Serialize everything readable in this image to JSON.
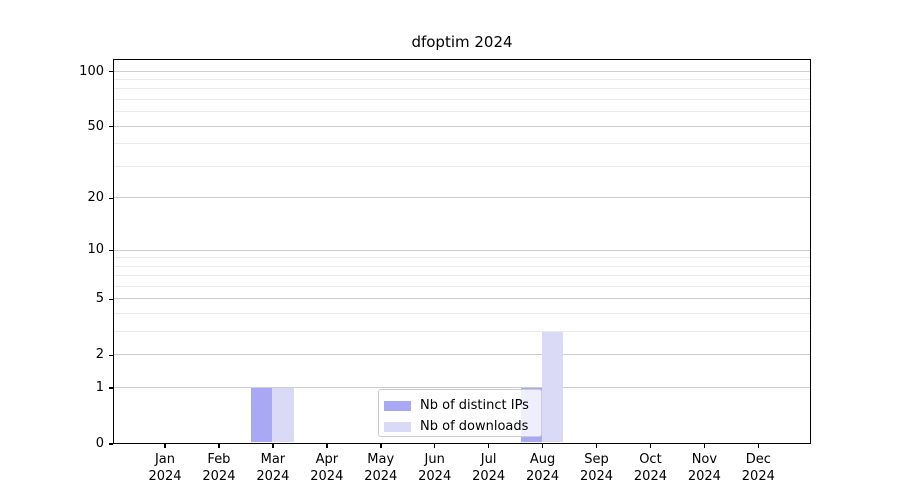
{
  "title": "dfoptim 2024",
  "chart_data": {
    "type": "bar",
    "title": "dfoptim 2024",
    "categories": [
      "Jan 2024",
      "Feb 2024",
      "Mar 2024",
      "Apr 2024",
      "May 2024",
      "Jun 2024",
      "Jul 2024",
      "Aug 2024",
      "Sep 2024",
      "Oct 2024",
      "Nov 2024",
      "Dec 2024"
    ],
    "series": [
      {
        "name": "Nb of distinct IPs",
        "color": "#a8a8f5",
        "values": [
          0,
          0,
          1,
          0,
          0,
          0,
          0,
          1,
          0,
          0,
          0,
          0
        ]
      },
      {
        "name": "Nb of downloads",
        "color": "#dadaf7",
        "values": [
          0,
          0,
          1,
          0,
          0,
          0,
          0,
          3,
          0,
          0,
          0,
          0
        ]
      }
    ],
    "xlabel": "",
    "ylabel": "",
    "yscale": "log1p",
    "ylim": [
      0,
      116
    ],
    "y_tick_values": [
      0,
      1,
      2,
      5,
      10,
      20,
      50,
      100
    ],
    "y_tick_labels": [
      "0",
      "1",
      "2",
      "5",
      "10",
      "20",
      "50",
      "100"
    ],
    "y_minor_gridlines": [
      3,
      4,
      6,
      7,
      8,
      9,
      30,
      40,
      60,
      70,
      80,
      90
    ],
    "grid": true,
    "legend_position": "lower center"
  },
  "colors": {
    "background": "#ffffff",
    "spine": "#000000",
    "grid_major": "#cdcdcd",
    "grid_minor": "#eaeaea",
    "text": "#000000",
    "bar_distinct_ips": "#a8a8f5",
    "bar_downloads": "#dadaf7",
    "legend_border": "#cccccc"
  }
}
